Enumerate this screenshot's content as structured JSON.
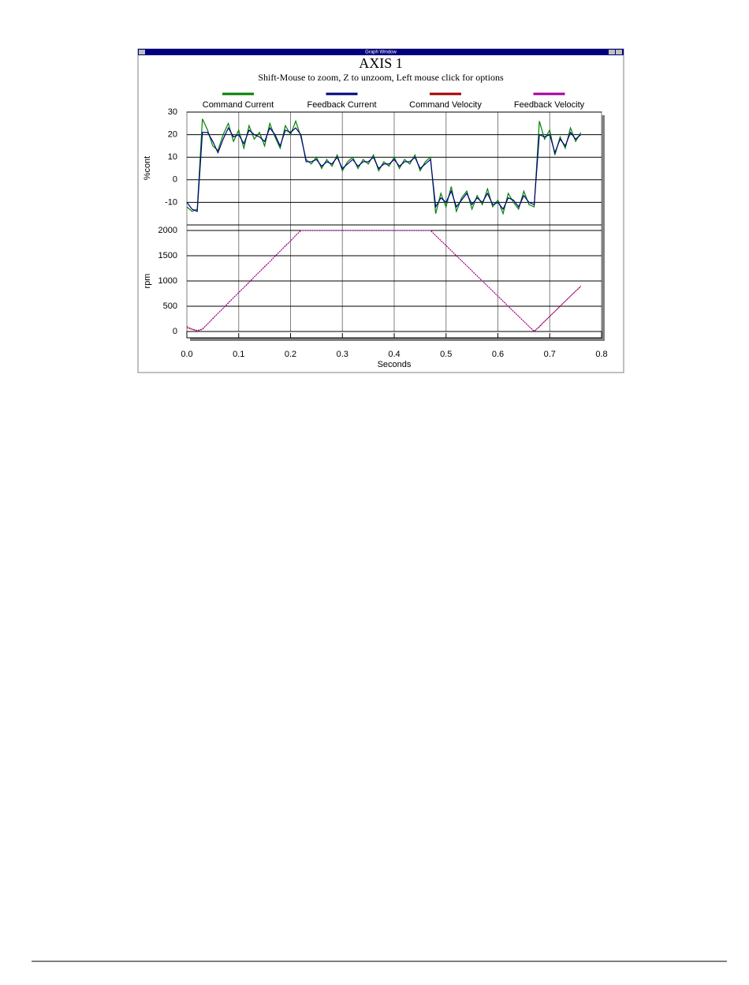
{
  "window": {
    "title": "Graph Window"
  },
  "chart_data": {
    "type": "line",
    "title": "AXIS 1",
    "subtitle": "Shift-Mouse to zoom, Z to unzoom, Left mouse click for options",
    "xlabel": "Seconds",
    "ylabel": "%cont",
    "y2label": "rpm",
    "x": [
      0,
      0.01,
      0.02,
      0.03,
      0.04,
      0.05,
      0.06,
      0.07,
      0.08,
      0.09,
      0.1,
      0.11,
      0.12,
      0.13,
      0.14,
      0.15,
      0.16,
      0.17,
      0.18,
      0.19,
      0.2,
      0.21,
      0.22,
      0.23,
      0.24,
      0.25,
      0.26,
      0.27,
      0.28,
      0.29,
      0.3,
      0.31,
      0.32,
      0.33,
      0.34,
      0.35,
      0.36,
      0.37,
      0.38,
      0.39,
      0.4,
      0.41,
      0.42,
      0.43,
      0.44,
      0.45,
      0.46,
      0.47,
      0.48,
      0.49,
      0.5,
      0.51,
      0.52,
      0.53,
      0.54,
      0.55,
      0.56,
      0.57,
      0.58,
      0.59,
      0.6,
      0.61,
      0.62,
      0.63,
      0.64,
      0.65,
      0.66,
      0.67,
      0.68,
      0.69,
      0.7,
      0.71,
      0.72,
      0.73,
      0.74,
      0.75,
      0.76
    ],
    "series": [
      {
        "name": "Command Current",
        "color": "#008000",
        "values": [
          -12,
          -14,
          -13,
          27,
          22,
          15,
          13,
          20,
          25,
          17,
          22,
          14,
          24,
          18,
          21,
          15,
          25,
          19,
          14,
          24,
          20,
          26,
          19,
          9,
          7,
          10,
          5,
          9,
          6,
          11,
          4,
          8,
          10,
          5,
          9,
          7,
          11,
          4,
          8,
          6,
          10,
          5,
          9,
          7,
          11,
          4,
          8,
          10,
          -15,
          -6,
          -12,
          -3,
          -14,
          -8,
          -5,
          -13,
          -7,
          -11,
          -4,
          -12,
          -9,
          -15,
          -6,
          -10,
          -13,
          -5,
          -11,
          -12,
          26,
          18,
          22,
          11,
          19,
          14,
          23,
          17,
          21
        ]
      },
      {
        "name": "Feedback Current",
        "color": "#000080",
        "values": [
          -10,
          -13,
          -14,
          21,
          21,
          17,
          12,
          18,
          23,
          19,
          20,
          16,
          22,
          20,
          19,
          17,
          23,
          20,
          15,
          22,
          21,
          23,
          20,
          8,
          8,
          9,
          6,
          8,
          7,
          10,
          5,
          7,
          9,
          6,
          8,
          8,
          10,
          5,
          7,
          7,
          9,
          6,
          8,
          8,
          10,
          5,
          7,
          9,
          -12,
          -8,
          -10,
          -5,
          -12,
          -9,
          -6,
          -11,
          -8,
          -10,
          -6,
          -11,
          -10,
          -13,
          -8,
          -9,
          -12,
          -7,
          -10,
          -11,
          20,
          19,
          20,
          12,
          18,
          15,
          21,
          18,
          20
        ]
      },
      {
        "name": "Command Velocity",
        "color": "#a00000",
        "axis": "y2",
        "values": [
          100,
          50,
          20,
          50,
          150,
          260,
          360,
          460,
          560,
          670,
          770,
          870,
          970,
          1080,
          1180,
          1280,
          1380,
          1490,
          1590,
          1690,
          1790,
          1900,
          2000,
          2000,
          2000,
          2000,
          2000,
          2000,
          2000,
          2000,
          2000,
          2000,
          2000,
          2000,
          2000,
          2000,
          2000,
          2000,
          2000,
          2000,
          2000,
          2000,
          2000,
          2000,
          2000,
          2000,
          2000,
          2000,
          1900,
          1800,
          1700,
          1600,
          1500,
          1400,
          1300,
          1200,
          1100,
          1000,
          900,
          800,
          700,
          600,
          500,
          400,
          300,
          200,
          100,
          0,
          100,
          200,
          300,
          400,
          500,
          600,
          700,
          800,
          900
        ]
      },
      {
        "name": "Feedback Velocity",
        "color": "#a000a0",
        "axis": "y2",
        "values": [
          70,
          40,
          10,
          40,
          150,
          250,
          360,
          460,
          570,
          670,
          770,
          870,
          980,
          1080,
          1180,
          1290,
          1380,
          1490,
          1590,
          1700,
          1790,
          1900,
          2000,
          2000,
          2000,
          2000,
          2000,
          2000,
          2000,
          2000,
          2000,
          2000,
          2000,
          2000,
          2000,
          2000,
          2000,
          2000,
          2000,
          2000,
          2000,
          2000,
          2000,
          2000,
          2000,
          2000,
          2000,
          2000,
          1900,
          1800,
          1700,
          1600,
          1500,
          1400,
          1300,
          1200,
          1100,
          1000,
          900,
          800,
          700,
          600,
          500,
          400,
          300,
          200,
          100,
          10,
          90,
          200,
          300,
          400,
          500,
          600,
          700,
          800,
          890
        ]
      }
    ],
    "xlim": [
      0,
      0.8
    ],
    "xticks": [
      {
        "value": 0,
        "label": "0.0"
      },
      0.1,
      0.2,
      0.3,
      0.4,
      0.5,
      0.6,
      0.7,
      0.8
    ],
    "ylim": [
      -20,
      30
    ],
    "yticks": [
      -10,
      0,
      10,
      20,
      30
    ],
    "y2lim": [
      0,
      2100
    ],
    "y2ticks": [
      0,
      500,
      1000,
      1500,
      2000
    ],
    "grid": true
  }
}
